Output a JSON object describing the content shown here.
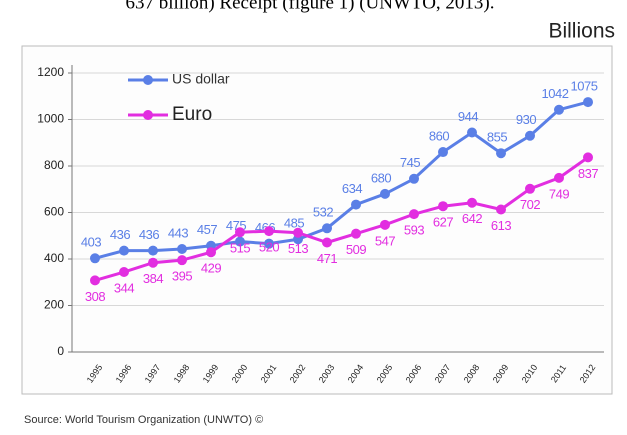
{
  "caption": "637 billion) Receipt (figure 1) (UNWTO, 2013).",
  "chart_data": {
    "type": "line",
    "unit": "Billions",
    "categories": [
      "1995",
      "1996",
      "1997",
      "1998",
      "1999",
      "2000",
      "2001",
      "2002",
      "2003",
      "2004",
      "2005",
      "2006",
      "2007",
      "2008",
      "2009",
      "2010",
      "2011",
      "2012"
    ],
    "series": [
      {
        "name": "US dollar",
        "color": "#5a7fe6",
        "values": [
          403,
          436,
          436,
          443,
          457,
          475,
          466,
          485,
          532,
          634,
          680,
          745,
          860,
          944,
          855,
          930,
          1042,
          1075
        ]
      },
      {
        "name": "Euro",
        "color": "#e22ee0",
        "values": [
          308,
          344,
          384,
          395,
          429,
          515,
          520,
          513,
          471,
          509,
          547,
          593,
          627,
          642,
          613,
          702,
          749,
          837
        ]
      }
    ],
    "ylim": [
      0,
      1200
    ],
    "yticks": [
      0,
      200,
      400,
      600,
      800,
      1000,
      1200
    ],
    "grid": true,
    "legend": "top-left",
    "source": "Source: World Tourism Organization (UNWTO) ©"
  }
}
